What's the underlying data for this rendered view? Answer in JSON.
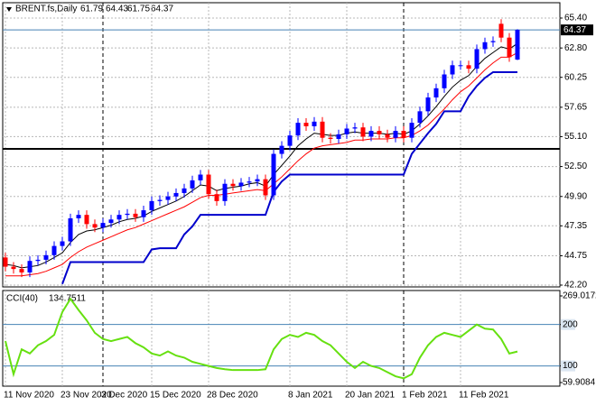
{
  "chart_data": [
    {
      "type": "candlestick",
      "title": "BRENT.fs,Daily",
      "categories": [
        "11 Nov 2020",
        null,
        null,
        null,
        null,
        null,
        null,
        "23 Nov 2020",
        null,
        null,
        null,
        null,
        "3 Dec 2020",
        null,
        null,
        null,
        null,
        null,
        "15 Dec 2020",
        null,
        null,
        null,
        null,
        null,
        null,
        "28 Dec 2020",
        null,
        null,
        null,
        null,
        null,
        null,
        null,
        null,
        null,
        "8 Jan 2021",
        null,
        null,
        null,
        null,
        null,
        null,
        "20 Jan 2021",
        null,
        null,
        null,
        null,
        null,
        null,
        "1 Feb 2021",
        null,
        null,
        null,
        null,
        null,
        null,
        "11 Feb 2021",
        null,
        null,
        null,
        null,
        null,
        null,
        null
      ],
      "open": [
        44.6,
        43.8,
        43.6,
        43.3,
        44.3,
        44.4,
        44.8,
        45.6,
        46.0,
        48.0,
        48.3,
        47.5,
        47.2,
        47.6,
        47.9,
        48.3,
        48.4,
        48.1,
        48.7,
        49.5,
        49.6,
        49.9,
        50.2,
        50.6,
        51.3,
        51.8,
        50.1,
        49.5,
        51.0,
        50.8,
        51.1,
        51.2,
        51.4,
        50.0,
        53.6,
        54.3,
        55.2,
        56.3,
        56.0,
        56.4,
        55.0,
        54.9,
        55.3,
        55.8,
        55.9,
        55.1,
        55.6,
        55.3,
        55.0,
        55.6,
        55.0,
        56.3,
        57.3,
        58.5,
        59.3,
        60.5,
        61.3,
        61.3,
        61.0,
        62.7,
        63.3,
        64.9,
        63.7,
        61.79
      ],
      "high": [
        45.0,
        44.2,
        44.0,
        44.7,
        44.8,
        45.2,
        46.0,
        46.4,
        48.4,
        48.7,
        48.7,
        47.9,
        48.0,
        48.3,
        48.7,
        48.8,
        48.8,
        49.1,
        49.9,
        50.0,
        50.3,
        50.6,
        51.0,
        51.7,
        52.2,
        52.2,
        50.5,
        51.4,
        51.4,
        51.5,
        51.6,
        51.8,
        51.8,
        54.0,
        54.7,
        55.6,
        56.7,
        56.7,
        56.8,
        56.8,
        55.4,
        55.7,
        56.2,
        56.3,
        56.3,
        56.0,
        56.0,
        55.7,
        56.0,
        56.0,
        56.7,
        57.7,
        58.9,
        59.7,
        60.9,
        61.7,
        61.7,
        61.7,
        63.1,
        63.7,
        63.8,
        65.3,
        64.1,
        64.43
      ],
      "low": [
        43.4,
        43.2,
        42.9,
        42.9,
        43.9,
        44.0,
        44.4,
        45.2,
        45.6,
        47.6,
        47.1,
        46.8,
        46.8,
        47.2,
        47.5,
        47.9,
        47.7,
        47.7,
        48.3,
        49.1,
        49.2,
        49.5,
        49.8,
        50.2,
        50.9,
        49.7,
        49.1,
        49.1,
        50.4,
        50.4,
        50.7,
        50.8,
        49.6,
        49.6,
        53.2,
        53.9,
        54.8,
        55.6,
        55.6,
        54.6,
        54.5,
        54.5,
        54.9,
        55.4,
        54.7,
        54.7,
        54.9,
        54.6,
        54.6,
        54.6,
        54.6,
        55.9,
        56.9,
        58.1,
        58.9,
        60.1,
        60.9,
        60.6,
        60.6,
        62.3,
        62.9,
        63.3,
        61.6,
        61.75
      ],
      "close": [
        43.8,
        43.6,
        43.3,
        44.3,
        44.4,
        44.8,
        45.6,
        46.0,
        48.0,
        48.3,
        47.5,
        47.2,
        47.6,
        47.9,
        48.3,
        48.4,
        48.1,
        48.7,
        49.5,
        49.6,
        49.9,
        50.2,
        50.6,
        51.3,
        51.8,
        50.1,
        49.5,
        51.0,
        50.8,
        51.1,
        51.2,
        51.4,
        50.0,
        53.6,
        54.3,
        55.2,
        56.3,
        56.0,
        56.4,
        55.0,
        54.9,
        55.3,
        55.8,
        55.9,
        55.1,
        55.6,
        55.3,
        55.0,
        55.6,
        55.0,
        56.3,
        57.3,
        58.5,
        59.3,
        60.5,
        61.3,
        61.3,
        61.0,
        62.7,
        63.3,
        63.4,
        63.7,
        62.0,
        64.37
      ],
      "bull_color": "#0000ff",
      "bear_color": "#ff0000",
      "series": [
        {
          "color": "#000000",
          "values": [
            44.0,
            43.9,
            43.7,
            43.8,
            43.9,
            44.2,
            44.6,
            45.0,
            45.9,
            46.6,
            46.9,
            47.0,
            47.2,
            47.4,
            47.7,
            47.9,
            48.0,
            48.2,
            48.6,
            48.9,
            49.2,
            49.5,
            49.9,
            50.4,
            50.9,
            50.8,
            50.4,
            50.6,
            50.7,
            50.8,
            51.0,
            51.1,
            50.8,
            51.8,
            52.6,
            53.4,
            54.3,
            54.9,
            55.4,
            55.3,
            55.2,
            55.2,
            55.4,
            55.5,
            55.4,
            55.4,
            55.4,
            55.3,
            55.4,
            55.3,
            55.6,
            56.2,
            56.9,
            57.7,
            58.6,
            59.4,
            60.0,
            60.4,
            61.2,
            61.9,
            62.4,
            62.9,
            62.7,
            63.2
          ]
        },
        {
          "color": "#ff0000",
          "values": [
            43.0,
            43.0,
            43.0,
            43.1,
            43.2,
            43.4,
            43.7,
            44.0,
            44.6,
            45.1,
            45.5,
            45.8,
            46.1,
            46.4,
            46.7,
            47.0,
            47.2,
            47.5,
            47.8,
            48.1,
            48.4,
            48.7,
            49.0,
            49.4,
            49.8,
            50.0,
            50.0,
            50.1,
            50.2,
            50.3,
            50.4,
            50.5,
            50.4,
            51.0,
            51.6,
            52.3,
            53.0,
            53.6,
            54.1,
            54.3,
            54.4,
            54.5,
            54.6,
            54.8,
            54.8,
            54.9,
            54.9,
            54.9,
            55.0,
            55.0,
            55.2,
            55.6,
            56.1,
            56.8,
            57.5,
            58.3,
            59.0,
            59.5,
            60.2,
            60.9,
            61.5,
            62.0,
            62.0,
            62.4
          ]
        },
        {
          "color": "#0000cc",
          "values": [
            null,
            null,
            null,
            null,
            null,
            null,
            null,
            42.3,
            44.2,
            44.2,
            44.2,
            44.2,
            44.2,
            44.2,
            44.2,
            44.2,
            44.2,
            44.2,
            45.3,
            45.4,
            45.4,
            45.4,
            46.6,
            47.3,
            48.3,
            48.3,
            48.3,
            48.3,
            48.3,
            48.3,
            48.3,
            48.3,
            48.3,
            50.3,
            51.2,
            51.8,
            51.8,
            51.8,
            51.8,
            51.8,
            51.8,
            51.8,
            51.8,
            51.8,
            51.8,
            51.8,
            51.8,
            51.8,
            51.8,
            51.8,
            53.6,
            54.5,
            55.4,
            56.2,
            57.3,
            57.3,
            57.3,
            58.6,
            59.5,
            60.2,
            60.7,
            60.7,
            60.7,
            60.7
          ]
        }
      ],
      "hline": 54.04,
      "ylim": [
        42.2,
        65.4
      ],
      "yticks": [
        {
          "value": 65.4,
          "label": "65.40"
        },
        {
          "value": 62.8,
          "label": "62.80"
        },
        60.25,
        57.65,
        {
          "value": 55.1,
          "label": "55.10"
        },
        {
          "value": 52.5,
          "label": "52.50"
        },
        {
          "value": 49.9,
          "label": "49.90"
        },
        47.35,
        44.75,
        {
          "value": 42.2,
          "label": "42.20"
        }
      ],
      "grid": true
    },
    {
      "type": "line",
      "title": "CCI(40)",
      "color": "#66e010",
      "values": [
        160,
        80,
        140,
        130,
        150,
        160,
        175,
        230,
        262,
        235,
        210,
        180,
        165,
        160,
        165,
        170,
        155,
        145,
        130,
        125,
        135,
        125,
        120,
        110,
        105,
        100,
        95,
        92,
        90,
        90,
        90,
        90,
        92,
        140,
        165,
        175,
        170,
        180,
        175,
        160,
        150,
        130,
        110,
        95,
        110,
        100,
        95,
        85,
        75,
        70,
        80,
        120,
        150,
        170,
        180,
        175,
        170,
        185,
        200,
        190,
        188,
        165,
        130,
        134.7511
      ],
      "ylim": [
        59.9084,
        269.0172
      ],
      "yticks": [
        269.0172,
        200,
        100,
        59.9084
      ],
      "level_color": "#4682b4"
    }
  ]
}
